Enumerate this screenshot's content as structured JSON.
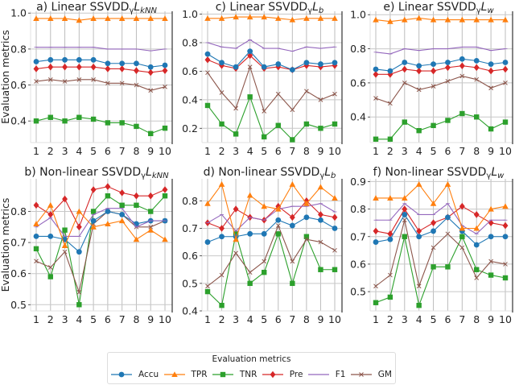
{
  "chart_data": {
    "type": "line",
    "x": [
      1,
      2,
      3,
      4,
      5,
      6,
      7,
      8,
      9,
      10
    ],
    "legend": {
      "title": "Evaluation metrics",
      "placement": "bottom-center",
      "entries": [
        {
          "name": "Accu",
          "color": "#1f77b4",
          "marker": "circle"
        },
        {
          "name": "TPR",
          "color": "#ff7f0e",
          "marker": "triangle"
        },
        {
          "name": "TNR",
          "color": "#2ca02c",
          "marker": "square"
        },
        {
          "name": "Pre",
          "color": "#d62728",
          "marker": "diamond"
        },
        {
          "name": "F1",
          "color": "#9467bd",
          "marker": "none"
        },
        {
          "name": "GM",
          "color": "#8c564b",
          "marker": "x"
        }
      ]
    },
    "panels": [
      {
        "id": "a",
        "title": "a) Linear SSVDD",
        "title_sub": "γ",
        "title_L": "L",
        "title_Lsub": "kNN",
        "ylabel": "Evaluation metrics",
        "ylim": [
          0.28,
          1.01
        ],
        "yticks": [
          0.4,
          0.6,
          0.8,
          1.0
        ],
        "ytick_labels": [
          "0.4",
          "0.6",
          "0.8",
          "1.0"
        ],
        "series": {
          "Accu": [
            0.73,
            0.74,
            0.74,
            0.74,
            0.74,
            0.72,
            0.72,
            0.72,
            0.7,
            0.71
          ],
          "TPR": [
            0.97,
            0.97,
            0.97,
            0.96,
            0.97,
            0.97,
            0.97,
            0.97,
            0.97,
            0.97
          ],
          "TNR": [
            0.4,
            0.42,
            0.4,
            0.42,
            0.41,
            0.39,
            0.39,
            0.37,
            0.33,
            0.36
          ],
          "Pre": [
            0.69,
            0.7,
            0.7,
            0.7,
            0.7,
            0.69,
            0.69,
            0.68,
            0.67,
            0.68
          ],
          "F1": [
            0.81,
            0.81,
            0.81,
            0.81,
            0.81,
            0.8,
            0.8,
            0.8,
            0.79,
            0.8
          ],
          "GM": [
            0.62,
            0.63,
            0.62,
            0.63,
            0.63,
            0.61,
            0.61,
            0.6,
            0.57,
            0.59
          ]
        }
      },
      {
        "id": "c",
        "title": "c) Linear SSVDD",
        "title_sub": "γ",
        "title_L": "L",
        "title_Lsub": "b",
        "ylabel": "",
        "ylim": [
          0.1,
          1.02
        ],
        "yticks": [
          0.2,
          0.4,
          0.6,
          0.8,
          1.0
        ],
        "ytick_labels": [
          "0.2",
          "0.4",
          "0.6",
          "0.8",
          "1.0"
        ],
        "series": {
          "Accu": [
            0.72,
            0.66,
            0.63,
            0.74,
            0.63,
            0.65,
            0.61,
            0.66,
            0.65,
            0.66
          ],
          "TPR": [
            0.97,
            0.97,
            0.98,
            0.98,
            0.98,
            0.97,
            0.96,
            0.97,
            0.97,
            0.97
          ],
          "TNR": [
            0.36,
            0.23,
            0.16,
            0.42,
            0.14,
            0.22,
            0.12,
            0.23,
            0.2,
            0.23
          ],
          "Pre": [
            0.68,
            0.64,
            0.62,
            0.71,
            0.62,
            0.63,
            0.61,
            0.64,
            0.63,
            0.64
          ],
          "F1": [
            0.8,
            0.77,
            0.76,
            0.82,
            0.76,
            0.76,
            0.74,
            0.77,
            0.76,
            0.77
          ],
          "GM": [
            0.59,
            0.45,
            0.34,
            0.63,
            0.32,
            0.44,
            0.33,
            0.46,
            0.4,
            0.44
          ]
        }
      },
      {
        "id": "e",
        "title": "e) Linear SSVDD",
        "title_sub": "γ",
        "title_L": "L",
        "title_Lsub": "w",
        "ylabel": "",
        "ylim": [
          0.25,
          1.02
        ],
        "yticks": [
          0.4,
          0.6,
          0.8,
          1.0
        ],
        "ytick_labels": [
          "0.4",
          "0.6",
          "0.8",
          "1.0"
        ],
        "series": {
          "Accu": [
            0.68,
            0.67,
            0.72,
            0.7,
            0.71,
            0.72,
            0.74,
            0.73,
            0.71,
            0.72
          ],
          "TPR": [
            0.97,
            0.96,
            0.97,
            0.98,
            0.97,
            0.97,
            0.97,
            0.97,
            0.97,
            0.97
          ],
          "TNR": [
            0.27,
            0.27,
            0.37,
            0.32,
            0.35,
            0.38,
            0.42,
            0.4,
            0.33,
            0.37
          ],
          "Pre": [
            0.65,
            0.65,
            0.68,
            0.67,
            0.67,
            0.69,
            0.7,
            0.69,
            0.67,
            0.68
          ],
          "F1": [
            0.78,
            0.77,
            0.8,
            0.79,
            0.8,
            0.8,
            0.81,
            0.81,
            0.79,
            0.8
          ],
          "GM": [
            0.51,
            0.48,
            0.6,
            0.56,
            0.58,
            0.61,
            0.64,
            0.62,
            0.57,
            0.6
          ]
        }
      },
      {
        "id": "b",
        "title": "b) Non-linear SSVDD",
        "title_sub": "γ",
        "title_L": "L",
        "title_Lsub": "kNN",
        "ylabel": "Evaluation metrics",
        "ylim": [
          0.48,
          0.905
        ],
        "yticks": [
          0.5,
          0.6,
          0.7,
          0.8
        ],
        "ytick_labels": [
          "0.5",
          "0.6",
          "0.7",
          "0.8"
        ],
        "series": {
          "Accu": [
            0.72,
            0.72,
            0.71,
            0.67,
            0.77,
            0.8,
            0.79,
            0.76,
            0.77,
            0.77
          ],
          "TPR": [
            0.76,
            0.82,
            0.69,
            0.8,
            0.75,
            0.76,
            0.77,
            0.71,
            0.74,
            0.71
          ],
          "TNR": [
            0.68,
            0.59,
            0.74,
            0.5,
            0.8,
            0.85,
            0.82,
            0.82,
            0.8,
            0.85
          ],
          "Pre": [
            0.82,
            0.79,
            0.84,
            0.75,
            0.87,
            0.88,
            0.86,
            0.85,
            0.85,
            0.87
          ],
          "F1": [
            0.75,
            0.78,
            0.72,
            0.72,
            0.79,
            0.81,
            0.81,
            0.75,
            0.77,
            0.77
          ],
          "GM": [
            0.64,
            0.62,
            0.67,
            0.54,
            0.76,
            0.8,
            0.79,
            0.75,
            0.75,
            0.77
          ]
        }
      },
      {
        "id": "d",
        "title": "d) Non-linear SSVDD",
        "title_sub": "γ",
        "title_L": "L",
        "title_Lsub": "b",
        "ylabel": "",
        "ylim": [
          0.4,
          0.88
        ],
        "yticks": [
          0.4,
          0.5,
          0.6,
          0.7,
          0.8
        ],
        "ytick_labels": [
          "0.4",
          "0.5",
          "0.6",
          "0.7",
          "0.8"
        ],
        "series": {
          "Accu": [
            0.65,
            0.67,
            0.67,
            0.68,
            0.68,
            0.73,
            0.71,
            0.74,
            0.73,
            0.7
          ],
          "TPR": [
            0.79,
            0.86,
            0.66,
            0.82,
            0.78,
            0.77,
            0.86,
            0.79,
            0.85,
            0.81
          ],
          "TNR": [
            0.47,
            0.42,
            0.68,
            0.5,
            0.54,
            0.68,
            0.5,
            0.67,
            0.55,
            0.55
          ],
          "Pre": [
            0.72,
            0.7,
            0.77,
            0.74,
            0.73,
            0.78,
            0.74,
            0.8,
            0.75,
            0.74
          ],
          "F1": [
            0.72,
            0.75,
            0.69,
            0.74,
            0.73,
            0.77,
            0.78,
            0.78,
            0.79,
            0.76
          ],
          "GM": [
            0.49,
            0.53,
            0.61,
            0.54,
            0.58,
            0.71,
            0.58,
            0.66,
            0.65,
            0.62
          ]
        }
      },
      {
        "id": "f",
        "title": "f) Non-linear SSVDD",
        "title_sub": "γ",
        "title_L": "L",
        "title_Lsub": "w",
        "ylabel": "",
        "ylim": [
          0.43,
          0.91
        ],
        "yticks": [
          0.5,
          0.6,
          0.7,
          0.8,
          0.9
        ],
        "ytick_labels": [
          "0.5",
          "0.6",
          "0.7",
          "0.8",
          "0.9"
        ],
        "series": {
          "Accu": [
            0.68,
            0.69,
            0.78,
            0.7,
            0.72,
            0.77,
            0.72,
            0.67,
            0.7,
            0.7
          ],
          "TPR": [
            0.84,
            0.84,
            0.84,
            0.89,
            0.82,
            0.89,
            0.73,
            0.73,
            0.8,
            0.81
          ],
          "TNR": [
            0.46,
            0.48,
            0.7,
            0.45,
            0.59,
            0.59,
            0.7,
            0.58,
            0.56,
            0.55
          ],
          "Pre": [
            0.72,
            0.71,
            0.8,
            0.72,
            0.75,
            0.77,
            0.81,
            0.78,
            0.75,
            0.74
          ],
          "F1": [
            0.76,
            0.76,
            0.82,
            0.78,
            0.78,
            0.82,
            0.74,
            0.71,
            0.76,
            0.76
          ],
          "GM": [
            0.52,
            0.56,
            0.76,
            0.52,
            0.66,
            0.71,
            0.66,
            0.55,
            0.61,
            0.6
          ]
        }
      }
    ]
  }
}
